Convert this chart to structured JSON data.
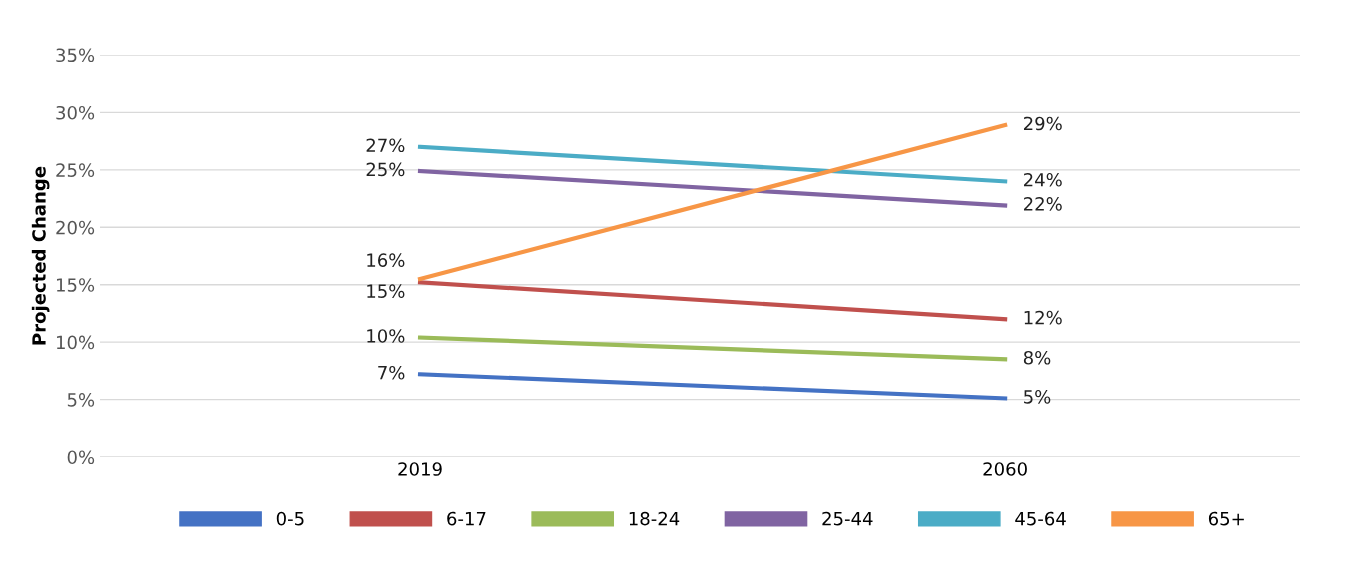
{
  "chart_data": {
    "type": "line",
    "ylabel": "Projected Change",
    "categories": [
      "2019",
      "2060"
    ],
    "series": [
      {
        "name": "0-5",
        "color": "#4472c4",
        "values": [
          7.2,
          5.1
        ],
        "value_labels": [
          "7%",
          "5%"
        ]
      },
      {
        "name": "6-17",
        "color": "#c0504d",
        "values": [
          15.2,
          12.0
        ],
        "value_labels": [
          "15%",
          "12%"
        ]
      },
      {
        "name": "18-24",
        "color": "#9bbb59",
        "values": [
          10.4,
          8.5
        ],
        "value_labels": [
          "10%",
          "8%"
        ]
      },
      {
        "name": "25-44",
        "color": "#8064a2",
        "values": [
          24.9,
          21.9
        ],
        "value_labels": [
          "25%",
          "22%"
        ]
      },
      {
        "name": "45-64",
        "color": "#4bacc6",
        "values": [
          27.0,
          24.0
        ],
        "value_labels": [
          "27%",
          "24%"
        ]
      },
      {
        "name": "65+",
        "color": "#f79646",
        "values": [
          15.5,
          28.9
        ],
        "value_labels": [
          "16%",
          "29%"
        ]
      }
    ],
    "ylim": [
      0,
      35
    ],
    "yticks": [
      {
        "value": 0,
        "label": "0%"
      },
      {
        "value": 5,
        "label": "5%"
      },
      {
        "value": 10,
        "label": "10%"
      },
      {
        "value": 15,
        "label": "15%"
      },
      {
        "value": 20,
        "label": "20%"
      },
      {
        "value": 25,
        "label": "25%"
      },
      {
        "value": 30,
        "label": "30%"
      },
      {
        "value": 35,
        "label": "35%"
      }
    ],
    "grid": "y",
    "legend": "bottom",
    "marker": "none",
    "line_style": "solid"
  }
}
